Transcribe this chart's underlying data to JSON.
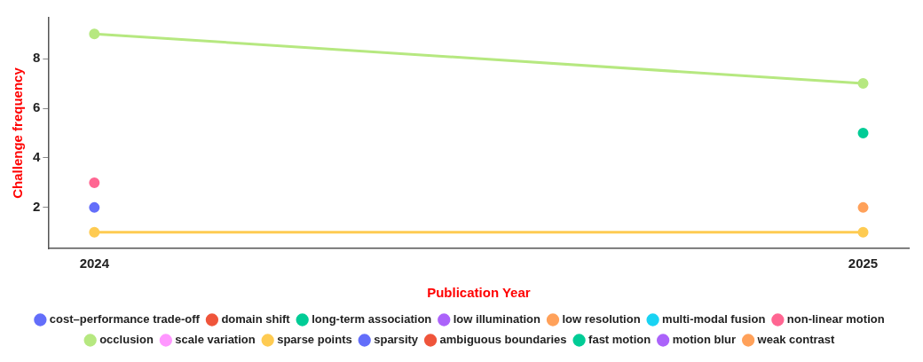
{
  "chart_data": {
    "type": "line",
    "xlabel": "Publication Year",
    "ylabel": "Challenge frequency",
    "x": [
      2024,
      2025
    ],
    "xlim": [
      2023.94,
      2025.06
    ],
    "xticks": [
      2024,
      2025
    ],
    "ylim": [
      0.35,
      9.65
    ],
    "yticks": [
      2,
      4,
      6,
      8
    ],
    "grid": false,
    "legend": "bottom",
    "marker": "circle",
    "line_style": "solid",
    "series": [
      {
        "name": "cost–performance trade-off",
        "color": "#636efa",
        "values": [
          null,
          null
        ]
      },
      {
        "name": "domain shift",
        "color": "#ef553b",
        "values": [
          null,
          null
        ]
      },
      {
        "name": "long-term association",
        "color": "#00cc96",
        "values": [
          null,
          null
        ]
      },
      {
        "name": "low illumination",
        "color": "#ab63fa",
        "values": [
          null,
          null
        ]
      },
      {
        "name": "low resolution",
        "color": "#ffa15a",
        "values": [
          null,
          null
        ]
      },
      {
        "name": "multi-modal fusion",
        "color": "#19d3f3",
        "values": [
          null,
          null
        ]
      },
      {
        "name": "non-linear motion",
        "color": "#ff6692",
        "values": [
          3,
          null
        ]
      },
      {
        "name": "occlusion",
        "color": "#b6e880",
        "values": [
          9,
          7
        ]
      },
      {
        "name": "scale variation",
        "color": "#ff97ff",
        "values": [
          null,
          null
        ]
      },
      {
        "name": "sparse points",
        "color": "#fecb52",
        "values": [
          1,
          1
        ]
      },
      {
        "name": "sparsity",
        "color": "#636efa",
        "values": [
          2,
          null
        ]
      },
      {
        "name": "ambiguous boundaries",
        "color": "#ef553b",
        "values": [
          null,
          null
        ]
      },
      {
        "name": "fast motion",
        "color": "#00cc96",
        "values": [
          null,
          5
        ]
      },
      {
        "name": "motion blur",
        "color": "#ab63fa",
        "values": [
          null,
          null
        ]
      },
      {
        "name": "weak contrast",
        "color": "#ffa15a",
        "values": [
          null,
          2
        ]
      }
    ]
  }
}
